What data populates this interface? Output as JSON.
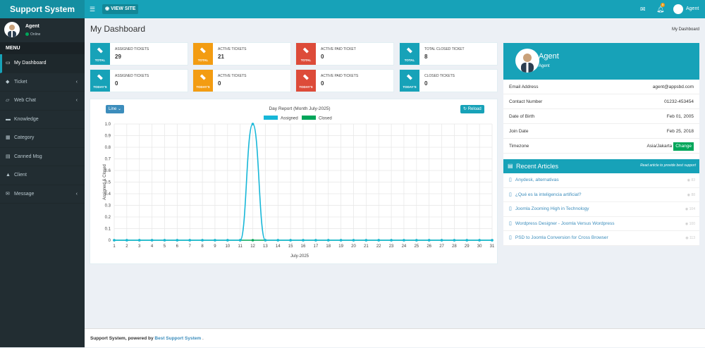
{
  "topbar": {
    "brand": "Support System",
    "view_site": "VIEW SITE",
    "notif_count": "5",
    "user_name": "Agent"
  },
  "sidebar": {
    "user_name": "Agent",
    "status": "Online",
    "menu_header": "MENU",
    "items": [
      {
        "label": "My Dashboard",
        "icon": "dashboard-icon",
        "glyph": "▭",
        "caret": ""
      },
      {
        "label": "Ticket",
        "icon": "ticket-icon",
        "glyph": "◆",
        "caret": "‹"
      },
      {
        "label": "Web Chat",
        "icon": "chat-icon",
        "glyph": "▱",
        "caret": "‹"
      },
      {
        "label": "Knowledge",
        "icon": "book-icon",
        "glyph": "▬",
        "caret": ""
      },
      {
        "label": "Category",
        "icon": "category-icon",
        "glyph": "▦",
        "caret": ""
      },
      {
        "label": "Canned Msg",
        "icon": "canned-msg-icon",
        "glyph": "▤",
        "caret": ""
      },
      {
        "label": "Client",
        "icon": "client-icon",
        "glyph": "▲",
        "caret": ""
      },
      {
        "label": "Message",
        "icon": "message-icon",
        "glyph": "✉",
        "caret": "‹"
      }
    ]
  },
  "page": {
    "title": "My Dashboard",
    "breadcrumb": "My Dashboard"
  },
  "stats": [
    {
      "label": "ASSIGNED TICKETS",
      "value": "29",
      "caption": "TOTAL",
      "color": "#17a2b8"
    },
    {
      "label": "ACTIVE TICKETS",
      "value": "21",
      "caption": "TOTAL",
      "color": "#f39c12"
    },
    {
      "label": "ACTIVE PAID TICKET",
      "value": "0",
      "caption": "TOTAL",
      "color": "#dd4b39"
    },
    {
      "label": "TOTAL CLOSED TICKET",
      "value": "8",
      "caption": "TOTAL",
      "color": "#17a2b8"
    },
    {
      "label": "ASSIGNED TICKETS",
      "value": "0",
      "caption": "TODAY'S",
      "color": "#17a2b8"
    },
    {
      "label": "ACTIVE TICKETS",
      "value": "0",
      "caption": "TODAY'S",
      "color": "#f39c12"
    },
    {
      "label": "ACTIVE PAID TICKETS",
      "value": "0",
      "caption": "TODAY'S",
      "color": "#dd4b39"
    },
    {
      "label": "CLOSED TICKETS",
      "value": "0",
      "caption": "TODAY'S",
      "color": "#17a2b8"
    }
  ],
  "chart_controls": {
    "type_select": "Line",
    "reload_label": "Reload"
  },
  "chart_data": {
    "type": "line",
    "title": "Day Report (Month July-2025)",
    "xlabel": "July-2025",
    "ylabel": "Assigned & Closed",
    "x": [
      1,
      2,
      3,
      4,
      5,
      6,
      7,
      8,
      9,
      10,
      11,
      12,
      13,
      14,
      15,
      16,
      17,
      18,
      19,
      20,
      21,
      22,
      23,
      24,
      25,
      26,
      27,
      28,
      29,
      30,
      31
    ],
    "ylim": [
      0,
      1.0
    ],
    "yticks": [
      "0",
      "0.1",
      "0.2",
      "0.3",
      "0.4",
      "0.5",
      "0.6",
      "0.7",
      "0.8",
      "0.9",
      "1.0"
    ],
    "series": [
      {
        "name": "Assigned",
        "color": "#17b7d8",
        "values": [
          0,
          0,
          0,
          0,
          0,
          0,
          0,
          0,
          0,
          0,
          0,
          1,
          0,
          0,
          0,
          0,
          0,
          0,
          0,
          0,
          0,
          0,
          0,
          0,
          0,
          0,
          0,
          0,
          0,
          0,
          0
        ]
      },
      {
        "name": "Closed",
        "color": "#00a65a",
        "values": [
          0,
          0,
          0,
          0,
          0,
          0,
          0,
          0,
          0,
          0,
          0,
          0,
          0,
          0,
          0,
          0,
          0,
          0,
          0,
          0,
          0,
          0,
          0,
          0,
          0,
          0,
          0,
          0,
          0,
          0,
          0
        ]
      }
    ],
    "grid": true,
    "legend": "top-center"
  },
  "profile": {
    "name": "Agent",
    "role": "Agent",
    "rows": [
      {
        "label": "Email Address",
        "value": "agent@appsbd.com"
      },
      {
        "label": "Contact Number",
        "value": "01232-453454"
      },
      {
        "label": "Date of Birth",
        "value": "Feb 01, 2005"
      },
      {
        "label": "Join Date",
        "value": "Feb 25, 2018"
      },
      {
        "label": "Timezone",
        "value": "Asia/Jakarta"
      }
    ],
    "change_label": "Change"
  },
  "articles": {
    "title": "Recent Articles",
    "subtitle": "Read article to provide best support",
    "items": [
      {
        "title": "Anydesk, alternativas",
        "views": "83"
      },
      {
        "title": "¿Qué es la inteligencia artificial?",
        "views": "88"
      },
      {
        "title": "Joomla Zooming High in Technology",
        "views": "104"
      },
      {
        "title": "Wordpress Designer - Joomla Versus Wordpress",
        "views": "100"
      },
      {
        "title": "PSD to Joomla Conversion for Cross Browser",
        "views": "113"
      }
    ]
  },
  "footer": {
    "text": "Support System, powered by",
    "link": "Best Support System",
    "suffix": "."
  }
}
